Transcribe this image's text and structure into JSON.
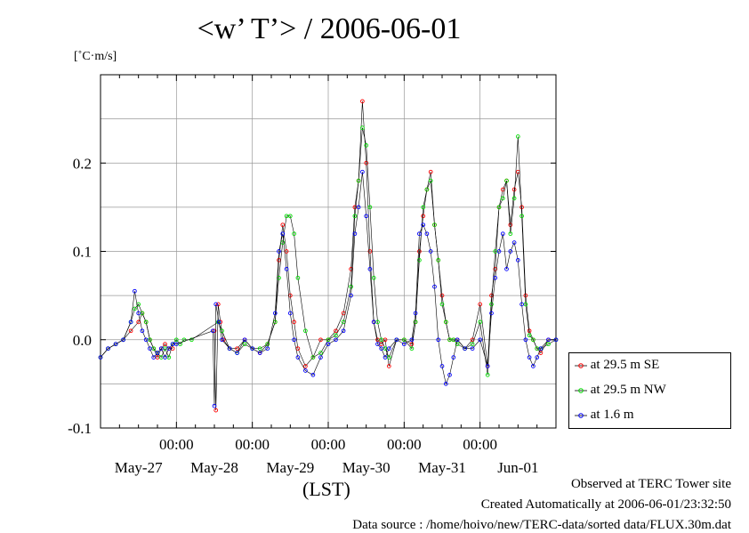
{
  "title": "<w’ T’> / 2006-06-01",
  "unit_label": "[˚C·m/s]",
  "xaxis_label": "(LST)",
  "footer": {
    "line1": "Observed at TERC Tower site",
    "line2": "Created Automatically at 2006-06-01/23:32:50",
    "line3": "Data source : /home/hoivo/new/TERC-data/sorted  data/FLUX.30m.dat"
  },
  "colors": {
    "red": "#ff0000",
    "green": "#00dd00",
    "blue": "#0000ff",
    "line": "#000000",
    "grid": "#999999"
  },
  "chart_data": {
    "type": "line",
    "title": "<w’ T’> / 2006-06-01",
    "ylabel": "[˚C·m/s]",
    "xlabel": "(LST)",
    "ylim": [
      -0.1,
      0.3
    ],
    "y_ticks": [
      -0.1,
      0.0,
      0.1,
      0.2
    ],
    "y_tick_labels": [
      "-0.1",
      "0.0",
      "0.1",
      "0.2"
    ],
    "xlim_days": [
      0,
      6
    ],
    "x_time_labels": [
      "00:00",
      "00:00",
      "00:00",
      "00:00",
      "00:00"
    ],
    "x_time_positions_days": [
      1,
      2,
      3,
      4,
      5
    ],
    "x_date_labels": [
      "May-27",
      "May-28",
      "May-29",
      "May-30",
      "May-31",
      "Jun-01"
    ],
    "x_date_positions_days": [
      0.5,
      1.5,
      2.5,
      3.5,
      4.5,
      5.5
    ],
    "grid": true,
    "legend_position": "right",
    "series": [
      {
        "name": "at 29.5 m SE",
        "color": "red",
        "x": [
          0.0,
          0.1,
          0.2,
          0.3,
          0.4,
          0.5,
          0.55,
          0.6,
          0.65,
          0.7,
          0.75,
          0.8,
          0.85,
          0.9,
          0.95,
          1.0,
          1.5,
          1.52,
          1.55,
          1.58,
          1.62,
          1.7,
          1.8,
          1.9,
          2.0,
          2.1,
          2.2,
          2.3,
          2.35,
          2.4,
          2.45,
          2.5,
          2.55,
          2.6,
          2.7,
          2.8,
          2.9,
          3.0,
          3.1,
          3.2,
          3.3,
          3.35,
          3.4,
          3.45,
          3.5,
          3.55,
          3.6,
          3.65,
          3.7,
          3.75,
          3.8,
          3.9,
          4.0,
          4.1,
          4.15,
          4.2,
          4.25,
          4.3,
          4.35,
          4.4,
          4.45,
          4.5,
          4.55,
          4.6,
          4.65,
          4.7,
          4.8,
          4.9,
          5.0,
          5.1,
          5.15,
          5.2,
          5.25,
          5.3,
          5.35,
          5.4,
          5.45,
          5.5,
          5.55,
          5.6,
          5.65,
          5.7,
          5.75,
          5.8,
          5.9,
          6.0
        ],
        "y": [
          -0.02,
          -0.01,
          -0.005,
          0.0,
          0.01,
          0.02,
          0.03,
          0.02,
          0.0,
          -0.01,
          -0.02,
          -0.01,
          -0.005,
          -0.01,
          -0.01,
          null,
          0.01,
          -0.08,
          0.04,
          0.02,
          0.0,
          -0.01,
          -0.01,
          0.0,
          -0.01,
          -0.015,
          -0.005,
          0.02,
          0.09,
          0.13,
          0.1,
          0.05,
          0.02,
          -0.01,
          -0.03,
          -0.02,
          0.0,
          0.0,
          0.01,
          0.03,
          0.08,
          0.15,
          0.18,
          0.27,
          0.2,
          0.1,
          0.02,
          0.0,
          -0.005,
          0.0,
          -0.03,
          0.0,
          0.0,
          -0.005,
          0.02,
          0.1,
          0.14,
          0.17,
          0.19,
          0.13,
          0.09,
          0.05,
          0.02,
          0.0,
          0.0,
          0.0,
          -0.01,
          0.0,
          0.04,
          -0.03,
          0.05,
          0.08,
          0.15,
          0.17,
          0.18,
          0.13,
          0.17,
          0.19,
          0.15,
          0.05,
          0.01,
          0.0,
          -0.01,
          -0.015,
          0.0,
          0.0
        ]
      },
      {
        "name": "at 29.5 m NW",
        "color": "green",
        "x": [
          0.0,
          0.1,
          0.2,
          0.3,
          0.4,
          0.45,
          0.5,
          0.55,
          0.6,
          0.65,
          0.7,
          0.75,
          0.8,
          0.85,
          0.9,
          0.95,
          1.0,
          1.05,
          1.1,
          1.2,
          1.55,
          1.6,
          1.7,
          1.8,
          1.9,
          2.0,
          2.1,
          2.2,
          2.3,
          2.35,
          2.4,
          2.45,
          2.5,
          2.55,
          2.6,
          2.7,
          2.8,
          2.9,
          3.0,
          3.1,
          3.2,
          3.3,
          3.35,
          3.4,
          3.45,
          3.5,
          3.55,
          3.6,
          3.65,
          3.7,
          3.75,
          3.8,
          3.9,
          4.0,
          4.1,
          4.15,
          4.2,
          4.25,
          4.3,
          4.35,
          4.4,
          4.45,
          4.5,
          4.55,
          4.6,
          4.65,
          4.7,
          4.8,
          4.9,
          5.0,
          5.1,
          5.15,
          5.2,
          5.25,
          5.3,
          5.35,
          5.4,
          5.45,
          5.5,
          5.55,
          5.6,
          5.65,
          5.7,
          5.75,
          5.8,
          5.9,
          6.0
        ],
        "y": [
          -0.02,
          -0.01,
          -0.005,
          0.0,
          0.02,
          0.035,
          0.04,
          0.03,
          0.02,
          0.0,
          -0.01,
          -0.015,
          -0.02,
          -0.01,
          -0.02,
          -0.005,
          0.0,
          -0.005,
          0.0,
          0.0,
          0.02,
          0.01,
          -0.01,
          -0.015,
          -0.005,
          -0.01,
          -0.01,
          -0.005,
          0.02,
          0.07,
          0.11,
          0.14,
          0.14,
          0.12,
          0.07,
          0.01,
          -0.02,
          -0.015,
          0.0,
          0.005,
          0.02,
          0.06,
          0.14,
          0.18,
          0.24,
          0.22,
          0.15,
          0.07,
          0.02,
          0.0,
          -0.01,
          -0.02,
          0.0,
          0.0,
          -0.01,
          0.02,
          0.09,
          0.15,
          0.17,
          0.18,
          0.13,
          0.09,
          0.04,
          0.02,
          0.0,
          0.0,
          -0.005,
          -0.01,
          -0.005,
          0.02,
          -0.04,
          0.04,
          0.1,
          0.15,
          0.16,
          0.18,
          0.12,
          0.16,
          0.23,
          0.14,
          0.04,
          0.005,
          0.0,
          -0.01,
          -0.01,
          -0.005,
          0.0
        ]
      },
      {
        "name": "at 1.6 m",
        "color": "blue",
        "x": [
          0.0,
          0.1,
          0.2,
          0.3,
          0.4,
          0.45,
          0.5,
          0.55,
          0.6,
          0.65,
          0.7,
          0.75,
          0.8,
          0.85,
          0.9,
          0.95,
          1.0,
          1.48,
          1.5,
          1.52,
          1.56,
          1.6,
          1.7,
          1.8,
          1.9,
          2.0,
          2.1,
          2.2,
          2.3,
          2.35,
          2.4,
          2.45,
          2.5,
          2.55,
          2.6,
          2.7,
          2.8,
          2.9,
          3.0,
          3.1,
          3.2,
          3.3,
          3.35,
          3.4,
          3.45,
          3.5,
          3.55,
          3.6,
          3.65,
          3.7,
          3.75,
          3.8,
          3.9,
          4.0,
          4.1,
          4.15,
          4.2,
          4.25,
          4.3,
          4.35,
          4.4,
          4.45,
          4.5,
          4.55,
          4.6,
          4.65,
          4.7,
          4.8,
          4.9,
          5.0,
          5.1,
          5.15,
          5.2,
          5.25,
          5.3,
          5.35,
          5.4,
          5.45,
          5.5,
          5.55,
          5.6,
          5.65,
          5.7,
          5.75,
          5.8,
          5.9,
          6.0
        ],
        "y": [
          -0.02,
          -0.01,
          -0.005,
          0.0,
          0.02,
          0.055,
          0.03,
          0.01,
          0.0,
          -0.01,
          -0.02,
          -0.015,
          -0.01,
          -0.02,
          -0.01,
          -0.005,
          -0.005,
          0.01,
          -0.075,
          0.04,
          0.02,
          0.0,
          -0.01,
          -0.015,
          0.0,
          -0.01,
          -0.015,
          -0.01,
          0.03,
          0.1,
          0.12,
          0.08,
          0.03,
          0.0,
          -0.02,
          -0.035,
          -0.04,
          -0.02,
          -0.005,
          0.0,
          0.01,
          0.05,
          0.12,
          0.15,
          0.19,
          0.14,
          0.08,
          0.02,
          -0.005,
          -0.01,
          -0.02,
          -0.01,
          0.0,
          -0.005,
          0.0,
          0.03,
          0.12,
          0.13,
          0.12,
          0.1,
          0.06,
          0.0,
          -0.03,
          -0.05,
          -0.04,
          -0.02,
          0.0,
          -0.01,
          -0.01,
          0.0,
          -0.03,
          0.03,
          0.07,
          0.1,
          0.12,
          0.08,
          0.1,
          0.11,
          0.09,
          0.04,
          0.0,
          -0.02,
          -0.03,
          -0.02,
          -0.01,
          0.0,
          0.0
        ]
      }
    ]
  }
}
